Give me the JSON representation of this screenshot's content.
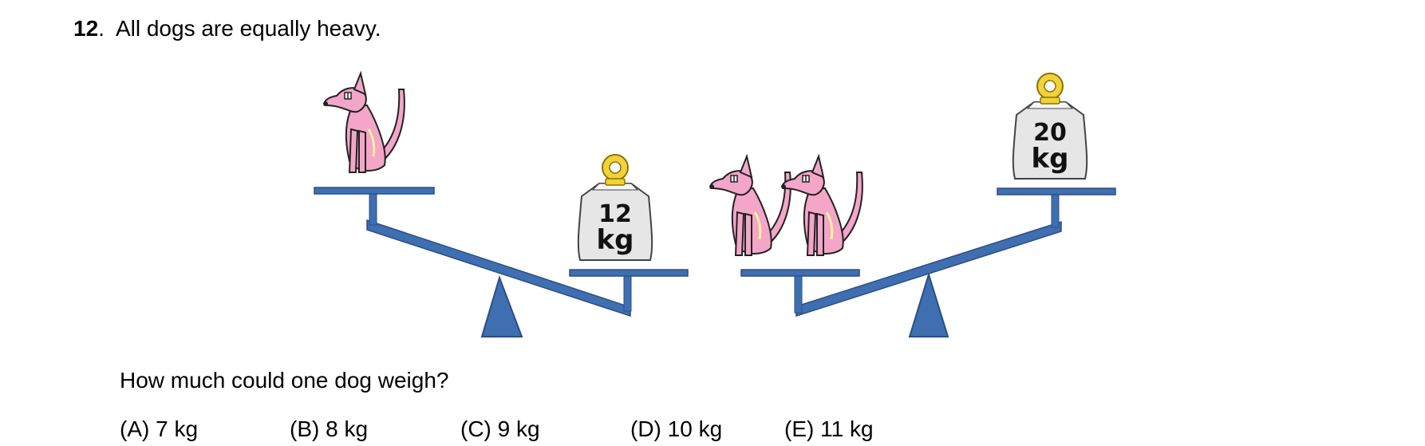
{
  "question": {
    "number": "12",
    "statement": "All dogs are equally heavy.",
    "prompt": "How much could one dog weigh?"
  },
  "figure": {
    "left_scale": {
      "heavier_side": "weight",
      "weight": {
        "number": "12",
        "unit": "kg"
      },
      "dogs": 1
    },
    "right_scale": {
      "heavier_side": "dogs",
      "weight": {
        "number": "20",
        "unit": "kg"
      },
      "dogs": 2
    },
    "colors": {
      "scale": "#3f6fb0",
      "dog": "#f3a6c8",
      "weight": "#e6e6e6",
      "ring": "#f2d23a"
    }
  },
  "options": [
    {
      "label": "(A) 7 kg"
    },
    {
      "label": "(B) 8 kg"
    },
    {
      "label": "(C) 9 kg"
    },
    {
      "label": "(D) 10 kg"
    },
    {
      "label": "(E) 11 kg"
    }
  ]
}
